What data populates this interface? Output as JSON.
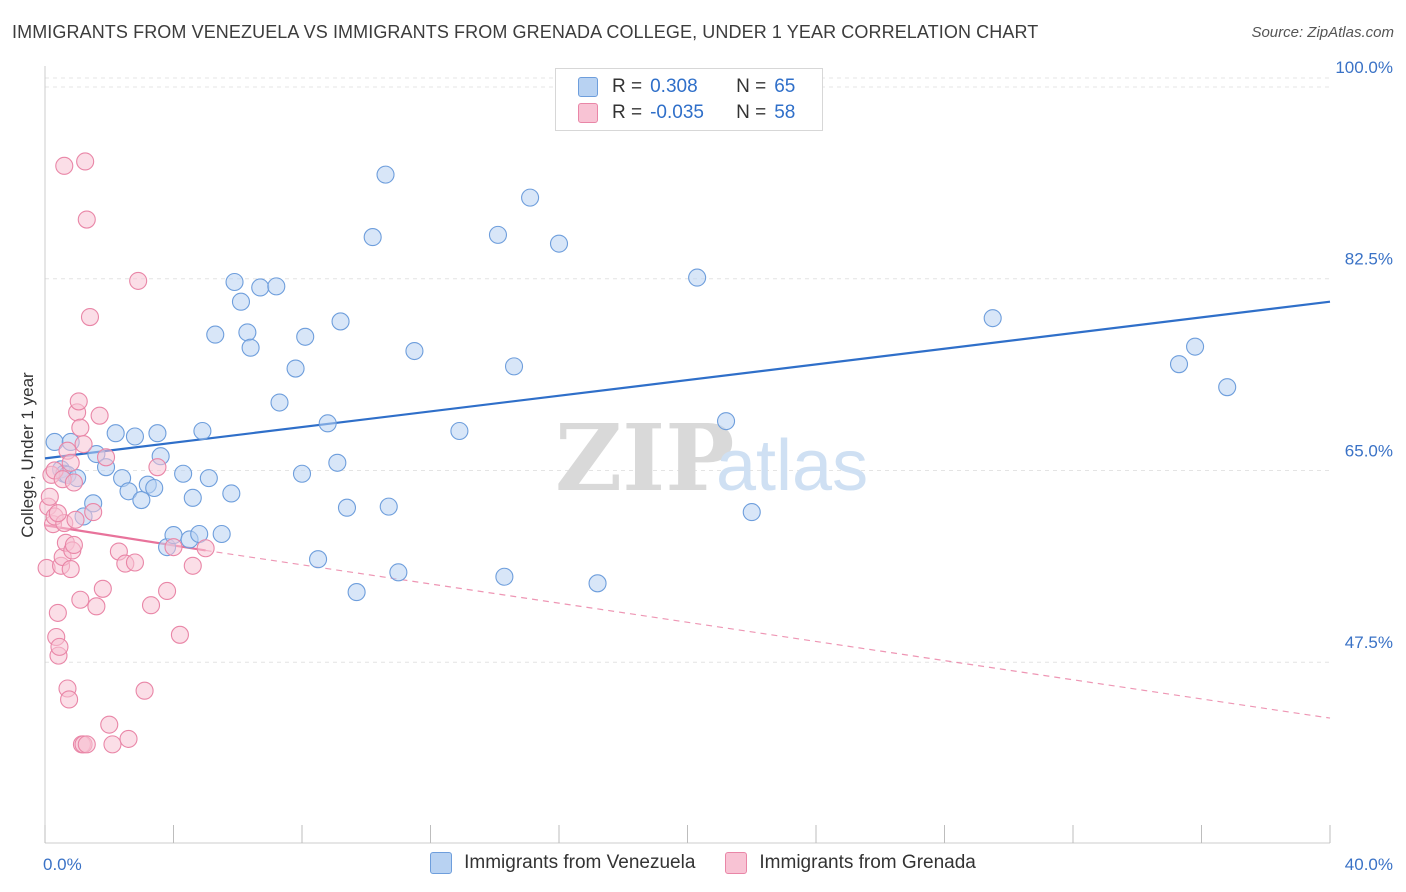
{
  "title": "IMMIGRANTS FROM VENEZUELA VS IMMIGRANTS FROM GRENADA COLLEGE, UNDER 1 YEAR CORRELATION CHART",
  "source": "Source: ZipAtlas.com",
  "watermark": {
    "zip": "ZIP",
    "atlas": "atlas"
  },
  "legend": {
    "series1": {
      "r_label": "R =",
      "r_value": "0.308",
      "n_label": "N =",
      "n_value": "65"
    },
    "series2": {
      "r_label": "R =",
      "r_value": "-0.035",
      "n_label": "N =",
      "n_value": "58"
    }
  },
  "colors": {
    "blue_fill": "#b8d2f2",
    "blue_stroke": "#6e9edc",
    "blue_line": "#2f6fc9",
    "pink_fill": "#f8c3d4",
    "pink_stroke": "#e986a7",
    "pink_line": "#e8739b",
    "grid": "#e4e4e4",
    "tick_label": "#3a72c6"
  },
  "chart_data": {
    "type": "scatter",
    "title": "IMMIGRANTS FROM VENEZUELA VS IMMIGRANTS FROM GRENADA COLLEGE, UNDER 1 YEAR CORRELATION CHART",
    "xlabel": "",
    "ylabel": "College, Under 1 year",
    "xlim": [
      0,
      40
    ],
    "ylim": [
      31,
      101
    ],
    "x_tick_labels": [
      {
        "value": 0,
        "label": "0.0%"
      },
      {
        "value": 40,
        "label": "40.0%"
      }
    ],
    "y_tick_labels": [
      {
        "value": 100,
        "label": "100.0%"
      },
      {
        "value": 82.5,
        "label": "82.5%"
      },
      {
        "value": 65,
        "label": "65.0%"
      },
      {
        "value": 47.5,
        "label": "47.5%"
      }
    ],
    "series": [
      {
        "name": "Immigrants from Venezuela",
        "color": "blue",
        "trend": {
          "x": [
            0,
            40
          ],
          "y": [
            66.1,
            80.4
          ],
          "dashed_to": null
        },
        "points": [
          [
            0.3,
            67.6
          ],
          [
            0.5,
            65.1
          ],
          [
            0.6,
            64.7
          ],
          [
            0.7,
            64.6
          ],
          [
            0.8,
            67.6
          ],
          [
            1.0,
            64.3
          ],
          [
            1.2,
            60.8
          ],
          [
            1.5,
            62.0
          ],
          [
            1.6,
            66.5
          ],
          [
            1.9,
            65.3
          ],
          [
            2.2,
            68.4
          ],
          [
            2.4,
            64.3
          ],
          [
            2.6,
            63.1
          ],
          [
            2.8,
            68.1
          ],
          [
            3.0,
            62.3
          ],
          [
            3.2,
            63.7
          ],
          [
            3.4,
            63.4
          ],
          [
            3.6,
            66.3
          ],
          [
            3.8,
            58.0
          ],
          [
            4.0,
            59.1
          ],
          [
            4.3,
            64.7
          ],
          [
            4.5,
            58.7
          ],
          [
            4.6,
            62.5
          ],
          [
            4.8,
            59.2
          ],
          [
            4.9,
            68.6
          ],
          [
            5.1,
            64.3
          ],
          [
            5.3,
            77.4
          ],
          [
            5.5,
            59.2
          ],
          [
            5.8,
            62.9
          ],
          [
            5.9,
            82.2
          ],
          [
            6.1,
            80.4
          ],
          [
            6.3,
            77.6
          ],
          [
            6.4,
            76.2
          ],
          [
            6.7,
            81.7
          ],
          [
            7.2,
            81.8
          ],
          [
            7.3,
            71.2
          ],
          [
            7.8,
            74.3
          ],
          [
            8.0,
            64.7
          ],
          [
            8.1,
            77.2
          ],
          [
            8.5,
            56.9
          ],
          [
            8.8,
            69.3
          ],
          [
            9.1,
            65.7
          ],
          [
            9.2,
            78.6
          ],
          [
            9.4,
            61.6
          ],
          [
            9.7,
            53.9
          ],
          [
            10.2,
            86.3
          ],
          [
            10.6,
            92.0
          ],
          [
            10.7,
            61.7
          ],
          [
            11.0,
            55.7
          ],
          [
            11.5,
            75.9
          ],
          [
            12.9,
            68.6
          ],
          [
            14.1,
            86.5
          ],
          [
            14.3,
            55.3
          ],
          [
            14.6,
            74.5
          ],
          [
            15.1,
            89.9
          ],
          [
            16.0,
            85.7
          ],
          [
            17.2,
            54.7
          ],
          [
            20.3,
            82.6
          ],
          [
            21.2,
            69.5
          ],
          [
            22.0,
            61.2
          ],
          [
            29.5,
            78.9
          ],
          [
            35.3,
            74.7
          ],
          [
            35.8,
            76.3
          ],
          [
            36.8,
            72.6
          ],
          [
            3.5,
            68.4
          ]
        ]
      },
      {
        "name": "Immigrants from Grenada",
        "color": "pink",
        "trend": {
          "x": [
            0,
            5
          ],
          "y": [
            60.0,
            57.7
          ],
          "dashed_to": {
            "x": 40,
            "y": 42.4
          }
        },
        "points": [
          [
            0.05,
            56.1
          ],
          [
            0.1,
            61.7
          ],
          [
            0.15,
            62.6
          ],
          [
            0.2,
            64.6
          ],
          [
            0.25,
            60.1
          ],
          [
            0.3,
            60.8
          ],
          [
            0.35,
            49.8
          ],
          [
            0.4,
            52.0
          ],
          [
            0.42,
            48.1
          ],
          [
            0.45,
            48.9
          ],
          [
            0.5,
            56.3
          ],
          [
            0.55,
            57.1
          ],
          [
            0.6,
            60.2
          ],
          [
            0.65,
            58.4
          ],
          [
            0.7,
            45.1
          ],
          [
            0.75,
            44.1
          ],
          [
            0.8,
            56.0
          ],
          [
            0.85,
            57.7
          ],
          [
            0.9,
            58.2
          ],
          [
            0.95,
            60.5
          ],
          [
            0.3,
            65.0
          ],
          [
            0.4,
            61.1
          ],
          [
            0.55,
            64.2
          ],
          [
            0.6,
            92.8
          ],
          [
            0.7,
            66.8
          ],
          [
            0.8,
            65.7
          ],
          [
            0.9,
            63.9
          ],
          [
            1.0,
            70.3
          ],
          [
            1.05,
            71.3
          ],
          [
            1.1,
            68.9
          ],
          [
            1.2,
            67.4
          ],
          [
            1.25,
            93.2
          ],
          [
            1.3,
            87.9
          ],
          [
            1.4,
            79.0
          ],
          [
            1.1,
            53.2
          ],
          [
            1.15,
            40.0
          ],
          [
            1.2,
            40.0
          ],
          [
            1.3,
            40.0
          ],
          [
            1.5,
            61.2
          ],
          [
            1.6,
            52.6
          ],
          [
            1.7,
            70.0
          ],
          [
            1.8,
            54.2
          ],
          [
            1.9,
            66.2
          ],
          [
            2.0,
            41.8
          ],
          [
            2.1,
            40.0
          ],
          [
            2.3,
            57.6
          ],
          [
            2.5,
            56.5
          ],
          [
            2.6,
            40.5
          ],
          [
            2.8,
            56.6
          ],
          [
            2.9,
            82.3
          ],
          [
            3.1,
            44.9
          ],
          [
            3.3,
            52.7
          ],
          [
            3.5,
            65.3
          ],
          [
            3.8,
            54.0
          ],
          [
            4.0,
            58.0
          ],
          [
            4.2,
            50.0
          ],
          [
            4.6,
            56.3
          ],
          [
            5.0,
            57.9
          ]
        ]
      }
    ]
  },
  "bottom_legend": {
    "item1": "Immigrants from Venezuela",
    "item2": "Immigrants from Grenada"
  }
}
